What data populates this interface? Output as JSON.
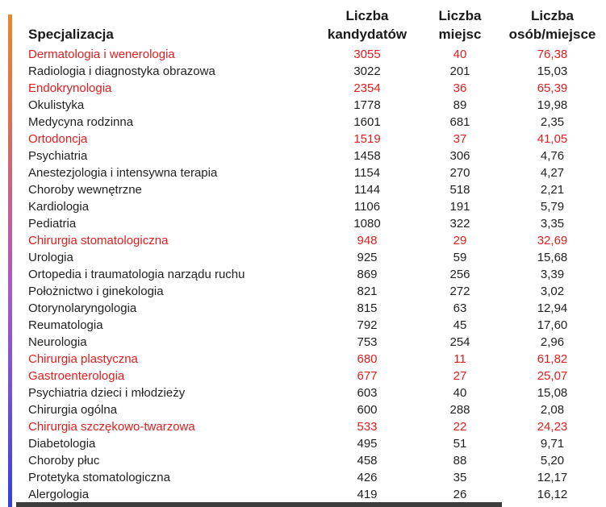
{
  "chart_data": {
    "type": "table",
    "header": {
      "col0": "Specjalizacja",
      "col1": [
        "Liczba",
        "kandydatów"
      ],
      "col2": [
        "Liczba",
        "miejsc"
      ],
      "col3": [
        "Liczba",
        "osób/miejsce"
      ]
    },
    "columns": [
      "Specjalizacja",
      "Liczba kandydatów",
      "Liczba miejsc",
      "Liczba osób/miejsce"
    ],
    "rows": [
      {
        "specjalizacja": "Dermatologia i wenerologia",
        "kandydatow": "3055",
        "miejsc": "40",
        "osob_miejsce": "76,38",
        "red": true
      },
      {
        "specjalizacja": "Radiologia i diagnostyka obrazowa",
        "kandydatow": "3022",
        "miejsc": "201",
        "osob_miejsce": "15,03",
        "red": false
      },
      {
        "specjalizacja": "Endokrynologia",
        "kandydatow": "2354",
        "miejsc": "36",
        "osob_miejsce": "65,39",
        "red": true
      },
      {
        "specjalizacja": "Okulistyka",
        "kandydatow": "1778",
        "miejsc": "89",
        "osob_miejsce": "19,98",
        "red": false
      },
      {
        "specjalizacja": "Medycyna rodzinna",
        "kandydatow": "1601",
        "miejsc": "681",
        "osob_miejsce": "2,35",
        "red": false
      },
      {
        "specjalizacja": "Ortodoncja",
        "kandydatow": "1519",
        "miejsc": "37",
        "osob_miejsce": "41,05",
        "red": true
      },
      {
        "specjalizacja": "Psychiatria",
        "kandydatow": "1458",
        "miejsc": "306",
        "osob_miejsce": "4,76",
        "red": false
      },
      {
        "specjalizacja": "Anestezjologia i intensywna terapia",
        "kandydatow": "1154",
        "miejsc": "270",
        "osob_miejsce": "4,27",
        "red": false
      },
      {
        "specjalizacja": "Choroby wewnętrzne",
        "kandydatow": "1144",
        "miejsc": "518",
        "osob_miejsce": "2,21",
        "red": false
      },
      {
        "specjalizacja": "Kardiologia",
        "kandydatow": "1106",
        "miejsc": "191",
        "osob_miejsce": "5,79",
        "red": false
      },
      {
        "specjalizacja": "Pediatria",
        "kandydatow": "1080",
        "miejsc": "322",
        "osob_miejsce": "3,35",
        "red": false
      },
      {
        "specjalizacja": "Chirurgia stomatologiczna",
        "kandydatow": "948",
        "miejsc": "29",
        "osob_miejsce": "32,69",
        "red": true
      },
      {
        "specjalizacja": "Urologia",
        "kandydatow": "925",
        "miejsc": "59",
        "osob_miejsce": "15,68",
        "red": false
      },
      {
        "specjalizacja": "Ortopedia i traumatologia narządu ruchu",
        "kandydatow": "869",
        "miejsc": "256",
        "osob_miejsce": "3,39",
        "red": false
      },
      {
        "specjalizacja": "Położnictwo i ginekologia",
        "kandydatow": "821",
        "miejsc": "272",
        "osob_miejsce": "3,02",
        "red": false
      },
      {
        "specjalizacja": "Otorynolaryngologia",
        "kandydatow": "815",
        "miejsc": "63",
        "osob_miejsce": "12,94",
        "red": false
      },
      {
        "specjalizacja": "Reumatologia",
        "kandydatow": "792",
        "miejsc": "45",
        "osob_miejsce": "17,60",
        "red": false
      },
      {
        "specjalizacja": "Neurologia",
        "kandydatow": "753",
        "miejsc": "254",
        "osob_miejsce": "2,96",
        "red": false
      },
      {
        "specjalizacja": "Chirurgia plastyczna",
        "kandydatow": "680",
        "miejsc": "11",
        "osob_miejsce": "61,82",
        "red": true
      },
      {
        "specjalizacja": "Gastroenterologia",
        "kandydatow": "677",
        "miejsc": "27",
        "osob_miejsce": "25,07",
        "red": true
      },
      {
        "specjalizacja": "Psychiatria dzieci i młodzieży",
        "kandydatow": "603",
        "miejsc": "40",
        "osob_miejsce": "15,08",
        "red": false
      },
      {
        "specjalizacja": "Chirurgia ogólna",
        "kandydatow": "600",
        "miejsc": "288",
        "osob_miejsce": "2,08",
        "red": false
      },
      {
        "specjalizacja": "Chirurgia szczękowo-twarzowa",
        "kandydatow": "533",
        "miejsc": "22",
        "osob_miejsce": "24,23",
        "red": true
      },
      {
        "specjalizacja": "Diabetologia",
        "kandydatow": "495",
        "miejsc": "51",
        "osob_miejsce": "9,71",
        "red": false
      },
      {
        "specjalizacja": "Choroby płuc",
        "kandydatow": "458",
        "miejsc": "88",
        "osob_miejsce": "5,20",
        "red": false
      },
      {
        "specjalizacja": "Protetyka stomatologiczna",
        "kandydatow": "426",
        "miejsc": "35",
        "osob_miejsce": "12,17",
        "red": false
      },
      {
        "specjalizacja": "Alergologia",
        "kandydatow": "419",
        "miejsc": "26",
        "osob_miejsce": "16,12",
        "red": false
      }
    ]
  },
  "colors": {
    "highlight_red": "#e11d1d",
    "text": "#1f1f1f",
    "accent_bar_top": "#e8872b",
    "accent_bar_middle": "#a95cc0",
    "accent_bar_bottom": "#3340e0",
    "bottom_bar": "#3d3d3d"
  }
}
